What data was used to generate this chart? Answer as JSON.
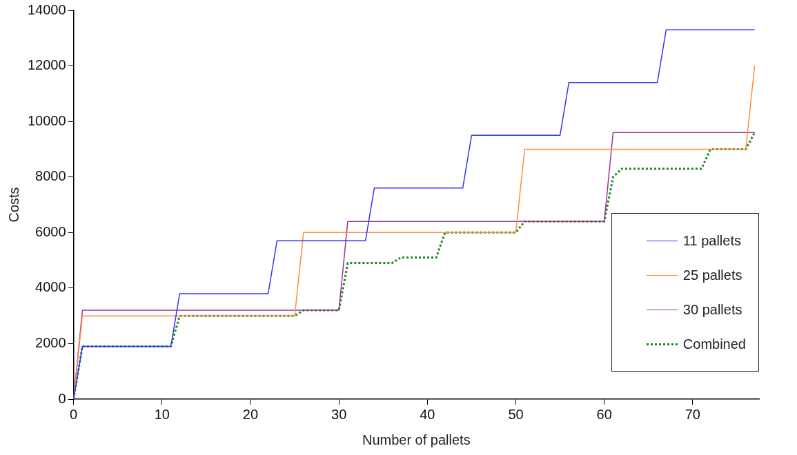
{
  "chart_data": {
    "type": "line",
    "xlabel": "Number of pallets",
    "ylabel": "Costs",
    "xlim": [
      0,
      77.5
    ],
    "xticks": [
      0,
      10,
      20,
      30,
      40,
      50,
      60,
      70
    ],
    "ylim": [
      0,
      14000
    ],
    "yticks": [
      0,
      2000,
      4000,
      6000,
      8000,
      10000,
      12000,
      14000
    ],
    "grid": false,
    "legend": "bottom right",
    "marker": "none",
    "series": [
      {
        "name": "11 pallets",
        "color": "#3333ff",
        "line_style": "solid",
        "x": [
          0,
          1,
          11,
          12,
          22,
          23,
          33,
          34,
          44,
          45,
          55,
          56,
          66,
          67,
          77
        ],
        "values": [
          0,
          1900,
          1900,
          3800,
          3800,
          5700,
          5700,
          7600,
          7600,
          9500,
          9500,
          11400,
          11400,
          13300,
          13300
        ]
      },
      {
        "name": "25 pallets",
        "color": "#ff8c40",
        "line_style": "solid",
        "x": [
          0,
          1,
          25,
          26,
          50,
          51,
          76,
          77
        ],
        "values": [
          0,
          3000,
          3000,
          6000,
          6000,
          9000,
          9000,
          12000
        ]
      },
      {
        "name": "30 pallets",
        "color": "#993399",
        "line_style": "solid",
        "x": [
          0,
          1,
          30,
          31,
          60,
          61,
          77
        ],
        "values": [
          0,
          3200,
          3200,
          6400,
          6400,
          9600,
          9600
        ]
      },
      {
        "name": "Combined",
        "color": "#1a8a1a",
        "line_style": "dotted",
        "x": [
          0,
          1,
          11,
          12,
          25,
          26,
          30,
          31,
          36,
          37,
          41,
          42,
          50,
          51,
          60,
          61,
          62,
          71,
          72,
          76,
          77
        ],
        "values": [
          0,
          1900,
          1900,
          3000,
          3000,
          3200,
          3200,
          4900,
          4900,
          5100,
          5100,
          6000,
          6000,
          6400,
          6400,
          8000,
          8300,
          8300,
          9000,
          9000,
          9600
        ]
      }
    ]
  }
}
